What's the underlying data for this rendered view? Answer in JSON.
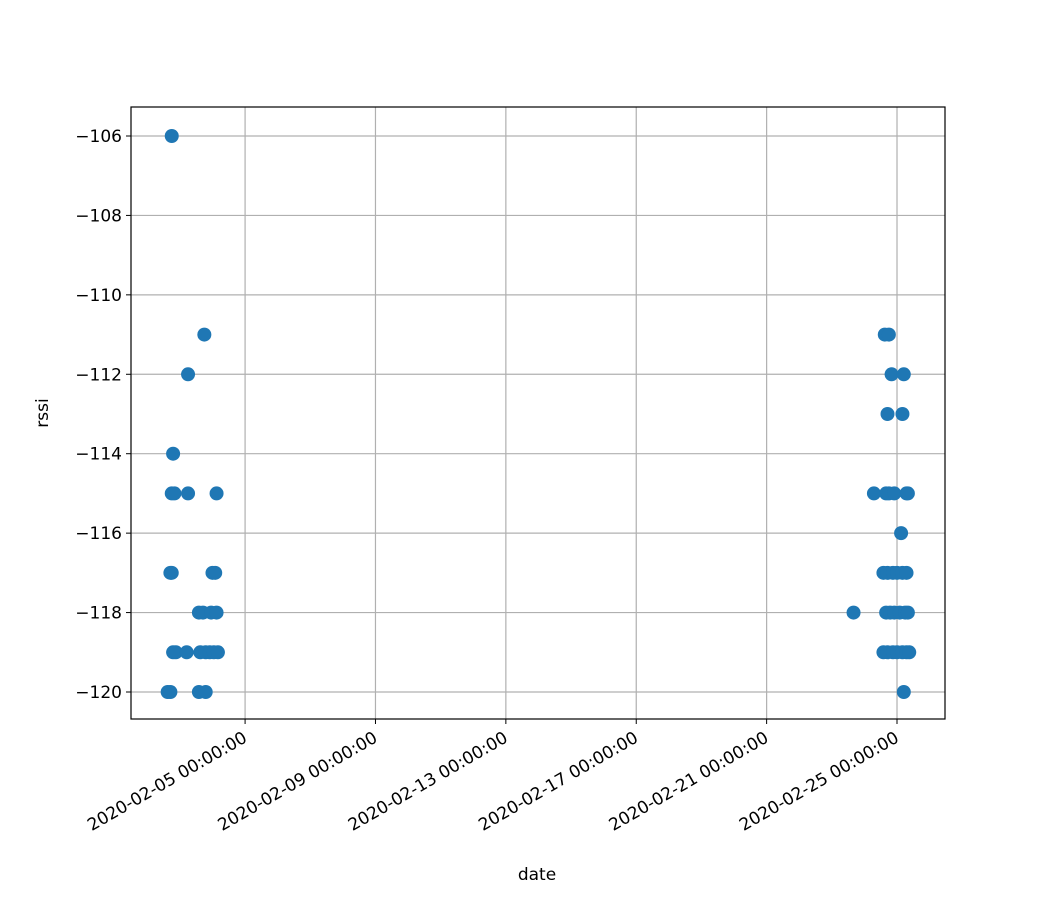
{
  "chart_data": {
    "type": "scatter",
    "x_label": "date",
    "y_label": "rssi",
    "grid": true,
    "xlim": [
      "2020-02-01 12:00:00",
      "2020-02-26 11:20:00"
    ],
    "xticks": [
      "2020-02-05 00:00:00",
      "2020-02-09 00:00:00",
      "2020-02-13 00:00:00",
      "2020-02-17 00:00:00",
      "2020-02-21 00:00:00",
      "2020-02-25 00:00:00"
    ],
    "ylim": [
      -120.68,
      -105.27
    ],
    "yticks": [
      {
        "value": -120,
        "label": "−120"
      },
      {
        "value": -118,
        "label": "−118"
      },
      {
        "value": -116,
        "label": "−116"
      },
      {
        "value": -114,
        "label": "−114"
      },
      {
        "value": -112,
        "label": "−112"
      },
      {
        "value": -110,
        "label": "−110"
      },
      {
        "value": -108,
        "label": "−108"
      },
      {
        "value": -106,
        "label": "−106"
      }
    ],
    "series": [
      {
        "color": "#1f77b4",
        "x": [
          "2020-02-02 18:00:00",
          "2020-02-02 15:00:00",
          "2020-02-02 17:00:00",
          "2020-02-02 17:00:00",
          "2020-02-02 18:00:00",
          "2020-02-02 19:00:00",
          "2020-02-02 18:00:00",
          "2020-02-02 20:00:00",
          "2020-02-02 19:00:00",
          "2020-02-02 21:00:00",
          "2020-02-03 06:00:00",
          "2020-02-03 06:00:00",
          "2020-02-03 05:00:00",
          "2020-02-03 18:00:00",
          "2020-02-03 14:00:00",
          "2020-02-03 17:00:00",
          "2020-02-03 15:00:00",
          "2020-02-03 19:00:00",
          "2020-02-03 14:00:00",
          "2020-02-03 19:00:00",
          "2020-02-04 03:00:00",
          "2020-02-04 00:00:00",
          "2020-02-04 02:00:00",
          "2020-02-03 23:00:00",
          "2020-02-04 03:00:00",
          "2020-02-03 22:00:00",
          "2020-02-04 01:00:00",
          "2020-02-04 04:00:00",
          "2020-02-23 16:00:00",
          "2020-02-24 07:00:00",
          "2020-02-24 15:00:00",
          "2020-02-24 18:00:00",
          "2020-02-24 20:00:00",
          "2020-02-24 17:00:00",
          "2020-02-25 05:00:00",
          "2020-02-25 04:00:00",
          "2020-02-24 16:00:00",
          "2020-02-24 18:00:00",
          "2020-02-24 22:00:00",
          "2020-02-25 07:00:00",
          "2020-02-25 08:00:00",
          "2020-02-25 03:00:00",
          "2020-02-24 14:00:00",
          "2020-02-24 17:00:00",
          "2020-02-24 21:00:00",
          "2020-02-25 00:00:00",
          "2020-02-25 04:00:00",
          "2020-02-25 07:00:00",
          "2020-02-24 16:00:00",
          "2020-02-24 19:00:00",
          "2020-02-24 22:00:00",
          "2020-02-25 02:00:00",
          "2020-02-25 06:00:00",
          "2020-02-25 08:00:00",
          "2020-02-24 14:00:00",
          "2020-02-24 17:00:00",
          "2020-02-24 21:00:00",
          "2020-02-25 00:00:00",
          "2020-02-25 04:00:00",
          "2020-02-25 07:00:00",
          "2020-02-25 09:00:00",
          "2020-02-25 05:00:00"
        ],
        "values": [
          -106,
          -120,
          -120,
          -117,
          -117,
          -114,
          -115,
          -115,
          -119,
          -119,
          -112,
          -115,
          -119,
          -111,
          -118,
          -118,
          -119,
          -119,
          -120,
          -120,
          -115,
          -117,
          -117,
          -118,
          -118,
          -119,
          -119,
          -119,
          -118,
          -115,
          -111,
          -111,
          -112,
          -113,
          -112,
          -113,
          -115,
          -115,
          -115,
          -115,
          -115,
          -116,
          -117,
          -117,
          -117,
          -117,
          -117,
          -117,
          -118,
          -118,
          -118,
          -118,
          -118,
          -118,
          -119,
          -119,
          -119,
          -119,
          -119,
          -119,
          -119,
          -120
        ]
      }
    ]
  }
}
